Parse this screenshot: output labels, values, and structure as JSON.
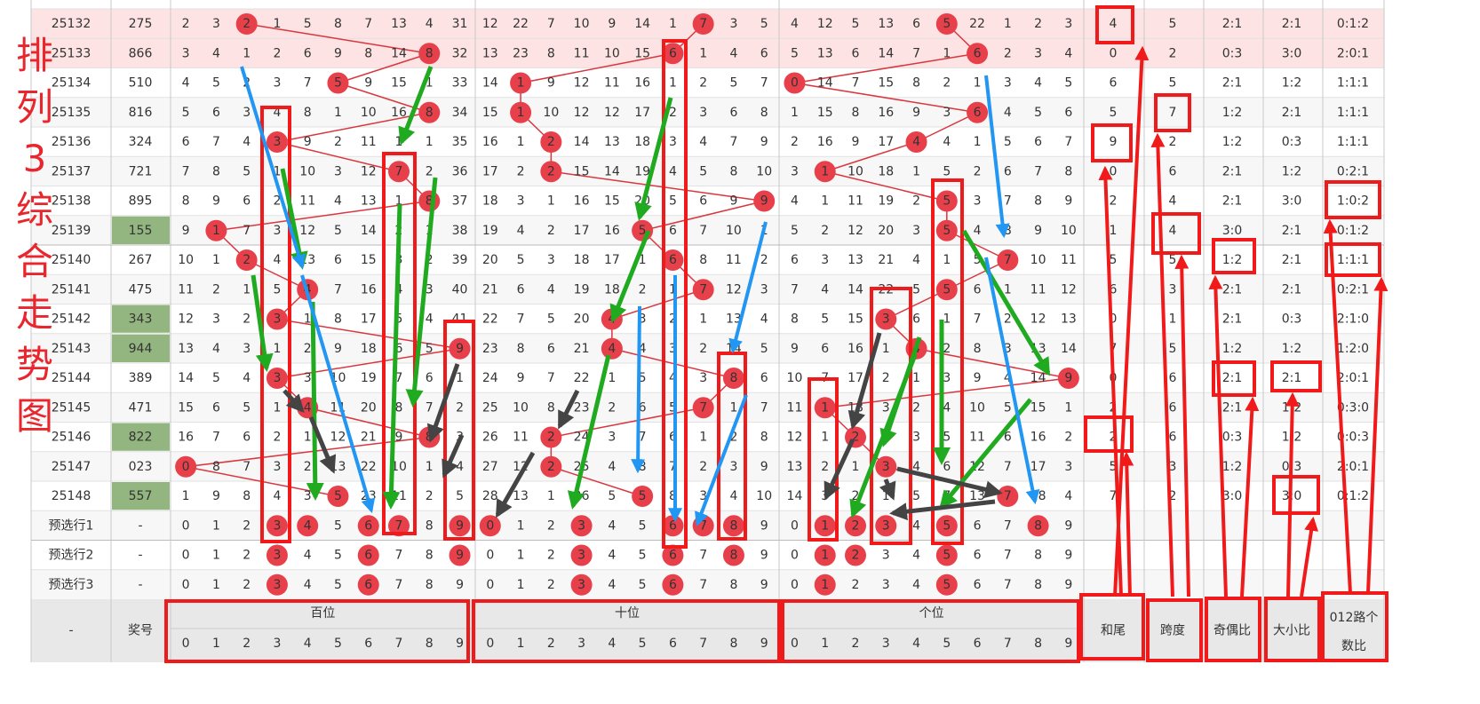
{
  "side_title": "排列3综合走势图",
  "header": {
    "issue": "-",
    "number": "奖号",
    "groups": [
      "百位",
      "十位",
      "个位"
    ],
    "digits": [
      [
        0,
        1,
        2,
        3,
        4,
        5,
        6,
        7,
        8,
        9
      ],
      [
        0,
        1,
        2,
        3,
        4,
        5,
        6,
        7,
        8,
        9
      ],
      [
        0,
        1,
        2,
        3,
        4,
        5,
        6,
        7,
        8,
        9
      ]
    ],
    "stats": [
      "和尾",
      "跨度",
      "奇偶比",
      "大小比",
      "012路个数比"
    ]
  },
  "rows": [
    {
      "issue": "25132",
      "number": "275",
      "hundreds": [
        2,
        3,
        2,
        1,
        5,
        8,
        7,
        13,
        4,
        31
      ],
      "tens": [
        12,
        22,
        7,
        10,
        9,
        14,
        1,
        7,
        3,
        5
      ],
      "ones": [
        4,
        12,
        5,
        13,
        6,
        5,
        22,
        1,
        2,
        3
      ],
      "sum_tail": 4,
      "span": 5,
      "odd_even": "2:1",
      "big_small": "2:1",
      "road012": "0:1:2"
    },
    {
      "issue": "25133",
      "number": "866",
      "hundreds": [
        3,
        4,
        1,
        2,
        6,
        9,
        8,
        14,
        8,
        32
      ],
      "tens": [
        13,
        23,
        8,
        11,
        10,
        15,
        6,
        1,
        4,
        6
      ],
      "ones": [
        5,
        13,
        6,
        14,
        7,
        1,
        6,
        2,
        3,
        4
      ],
      "sum_tail": 0,
      "span": 2,
      "odd_even": "0:3",
      "big_small": "3:0",
      "road012": "2:0:1"
    },
    {
      "issue": "25134",
      "number": "510",
      "hundreds": [
        4,
        5,
        2,
        3,
        7,
        5,
        9,
        15,
        1,
        33
      ],
      "tens": [
        14,
        1,
        9,
        12,
        11,
        16,
        1,
        2,
        5,
        7
      ],
      "ones": [
        0,
        14,
        7,
        15,
        8,
        2,
        1,
        3,
        4,
        5
      ],
      "sum_tail": 6,
      "span": 5,
      "odd_even": "2:1",
      "big_small": "1:2",
      "road012": "1:1:1"
    },
    {
      "issue": "25135",
      "number": "816",
      "hundreds": [
        5,
        6,
        3,
        4,
        8,
        1,
        10,
        16,
        8,
        34
      ],
      "tens": [
        15,
        1,
        10,
        12,
        12,
        17,
        2,
        3,
        6,
        8
      ],
      "ones": [
        1,
        15,
        8,
        16,
        9,
        3,
        6,
        4,
        5,
        6
      ],
      "sum_tail": 5,
      "span": 7,
      "odd_even": "1:2",
      "big_small": "2:1",
      "road012": "1:1:1"
    },
    {
      "issue": "25136",
      "number": "324",
      "hundreds": [
        6,
        7,
        4,
        3,
        9,
        2,
        11,
        1,
        1,
        35
      ],
      "tens": [
        16,
        1,
        2,
        14,
        13,
        18,
        3,
        4,
        7,
        9
      ],
      "ones": [
        2,
        16,
        9,
        17,
        4,
        4,
        1,
        5,
        6,
        7
      ],
      "sum_tail": 9,
      "span": 2,
      "odd_even": "1:2",
      "big_small": "0:3",
      "road012": "1:1:1"
    },
    {
      "issue": "25137",
      "number": "721",
      "hundreds": [
        7,
        8,
        5,
        1,
        10,
        3,
        12,
        7,
        2,
        36
      ],
      "tens": [
        17,
        2,
        2,
        15,
        14,
        19,
        4,
        5,
        8,
        10
      ],
      "ones": [
        3,
        1,
        10,
        18,
        1,
        5,
        2,
        6,
        7,
        8
      ],
      "sum_tail": 0,
      "span": 6,
      "odd_even": "2:1",
      "big_small": "1:2",
      "road012": "0:2:1"
    },
    {
      "issue": "25138",
      "number": "895",
      "hundreds": [
        8,
        9,
        6,
        2,
        11,
        4,
        13,
        1,
        8,
        37
      ],
      "tens": [
        18,
        3,
        1,
        16,
        15,
        20,
        5,
        6,
        9,
        9
      ],
      "ones": [
        4,
        1,
        11,
        19,
        2,
        5,
        3,
        7,
        8,
        9
      ],
      "sum_tail": 2,
      "span": 4,
      "odd_even": "2:1",
      "big_small": "3:0",
      "road012": "1:0:2"
    },
    {
      "issue": "25139",
      "number": "155",
      "hundreds": [
        9,
        1,
        7,
        3,
        12,
        5,
        14,
        2,
        1,
        38
      ],
      "tens": [
        19,
        4,
        2,
        17,
        16,
        5,
        6,
        7,
        10,
        1
      ],
      "ones": [
        5,
        2,
        12,
        20,
        3,
        5,
        4,
        8,
        9,
        10
      ],
      "sum_tail": 1,
      "span": 4,
      "odd_even": "3:0",
      "big_small": "2:1",
      "road012": "0:1:2"
    },
    {
      "issue": "25140",
      "number": "267",
      "hundreds": [
        10,
        1,
        2,
        4,
        13,
        6,
        15,
        3,
        2,
        39
      ],
      "tens": [
        20,
        5,
        3,
        18,
        17,
        1,
        6,
        8,
        11,
        2
      ],
      "ones": [
        6,
        3,
        13,
        21,
        4,
        1,
        5,
        7,
        10,
        11
      ],
      "sum_tail": 5,
      "span": 5,
      "odd_even": "1:2",
      "big_small": "2:1",
      "road012": "1:1:1"
    },
    {
      "issue": "25141",
      "number": "475",
      "hundreds": [
        11,
        2,
        1,
        5,
        4,
        7,
        16,
        4,
        3,
        40
      ],
      "tens": [
        21,
        6,
        4,
        19,
        18,
        2,
        1,
        7,
        12,
        3
      ],
      "ones": [
        7,
        4,
        14,
        22,
        5,
        5,
        6,
        1,
        11,
        12
      ],
      "sum_tail": 6,
      "span": 3,
      "odd_even": "2:1",
      "big_small": "2:1",
      "road012": "0:2:1"
    },
    {
      "issue": "25142",
      "number": "343",
      "hundreds": [
        12,
        3,
        2,
        3,
        1,
        8,
        17,
        5,
        4,
        41
      ],
      "tens": [
        22,
        7,
        5,
        20,
        4,
        3,
        2,
        1,
        13,
        4
      ],
      "ones": [
        8,
        5,
        15,
        3,
        6,
        1,
        7,
        2,
        12,
        13
      ],
      "sum_tail": 0,
      "span": 1,
      "odd_even": "2:1",
      "big_small": "0:3",
      "road012": "2:1:0"
    },
    {
      "issue": "25143",
      "number": "944",
      "hundreds": [
        13,
        4,
        3,
        1,
        2,
        9,
        18,
        6,
        5,
        9
      ],
      "tens": [
        23,
        8,
        6,
        21,
        4,
        4,
        3,
        2,
        14,
        5
      ],
      "ones": [
        9,
        6,
        16,
        1,
        4,
        2,
        8,
        3,
        13,
        14
      ],
      "sum_tail": 7,
      "span": 5,
      "odd_even": "1:2",
      "big_small": "1:2",
      "road012": "1:2:0"
    },
    {
      "issue": "25144",
      "number": "389",
      "hundreds": [
        14,
        5,
        4,
        3,
        3,
        10,
        19,
        7,
        6,
        1
      ],
      "tens": [
        24,
        9,
        7,
        22,
        1,
        5,
        4,
        3,
        8,
        6
      ],
      "ones": [
        10,
        7,
        17,
        2,
        1,
        3,
        9,
        4,
        14,
        9
      ],
      "sum_tail": 0,
      "span": 6,
      "odd_even": "2:1",
      "big_small": "2:1",
      "road012": "2:0:1"
    },
    {
      "issue": "25145",
      "number": "471",
      "hundreds": [
        15,
        6,
        5,
        1,
        4,
        11,
        20,
        8,
        7,
        2
      ],
      "tens": [
        25,
        10,
        8,
        23,
        2,
        6,
        5,
        7,
        1,
        7
      ],
      "ones": [
        11,
        1,
        18,
        3,
        2,
        4,
        10,
        5,
        15,
        1
      ],
      "sum_tail": 2,
      "span": 6,
      "odd_even": "2:1",
      "big_small": "1:2",
      "road012": "0:3:0"
    },
    {
      "issue": "25146",
      "number": "822",
      "hundreds": [
        16,
        7,
        6,
        2,
        1,
        12,
        21,
        9,
        8,
        3
      ],
      "tens": [
        26,
        11,
        2,
        24,
        3,
        7,
        6,
        1,
        2,
        8
      ],
      "ones": [
        12,
        1,
        2,
        4,
        3,
        5,
        11,
        6,
        16,
        2
      ],
      "sum_tail": 2,
      "span": 6,
      "odd_even": "0:3",
      "big_small": "1:2",
      "road012": "0:0:3"
    },
    {
      "issue": "25147",
      "number": "023",
      "hundreds": [
        0,
        8,
        7,
        3,
        2,
        13,
        22,
        10,
        1,
        4
      ],
      "tens": [
        27,
        12,
        2,
        25,
        4,
        8,
        7,
        2,
        3,
        9
      ],
      "ones": [
        13,
        2,
        1,
        3,
        4,
        6,
        12,
        7,
        17,
        3
      ],
      "sum_tail": 5,
      "span": 3,
      "odd_even": "1:2",
      "big_small": "0:3",
      "road012": "2:0:1"
    },
    {
      "issue": "25148",
      "number": "557",
      "hundreds": [
        1,
        9,
        8,
        4,
        3,
        5,
        23,
        11,
        2,
        5
      ],
      "tens": [
        28,
        13,
        1,
        26,
        5,
        5,
        8,
        3,
        4,
        10
      ],
      "ones": [
        14,
        3,
        2,
        1,
        5,
        7,
        13,
        7,
        18,
        4
      ],
      "sum_tail": 7,
      "span": 2,
      "odd_even": "3:0",
      "big_small": "3:0",
      "road012": "0:1:2"
    }
  ],
  "number_highlight": [
    7,
    10,
    11,
    14,
    16
  ],
  "preselect": [
    {
      "label": "预选行1",
      "number": "-",
      "hundreds": [
        0,
        1,
        2,
        3,
        4,
        5,
        6,
        7,
        8,
        9
      ],
      "tens": [
        0,
        1,
        2,
        3,
        4,
        5,
        6,
        7,
        8,
        9
      ],
      "ones": [
        0,
        1,
        2,
        3,
        4,
        5,
        6,
        7,
        8,
        9
      ],
      "circled": [
        [
          3,
          4,
          6,
          7,
          9
        ],
        [
          0,
          3,
          6,
          7,
          8
        ],
        [
          1,
          2,
          3,
          5,
          8
        ]
      ]
    },
    {
      "label": "预选行2",
      "number": "-",
      "hundreds": [
        0,
        1,
        2,
        3,
        4,
        5,
        6,
        7,
        8,
        9
      ],
      "tens": [
        0,
        1,
        2,
        3,
        4,
        5,
        6,
        7,
        8,
        9
      ],
      "ones": [
        0,
        1,
        2,
        3,
        4,
        5,
        6,
        7,
        8,
        9
      ],
      "circled": [
        [
          3,
          6,
          9
        ],
        [
          3,
          6,
          8
        ],
        [
          1,
          2,
          5
        ]
      ]
    },
    {
      "label": "预选行3",
      "number": "-",
      "hundreds": [
        0,
        1,
        2,
        3,
        4,
        5,
        6,
        7,
        8,
        9
      ],
      "tens": [
        0,
        1,
        2,
        3,
        4,
        5,
        6,
        7,
        8,
        9
      ],
      "ones": [
        0,
        1,
        2,
        3,
        4,
        5,
        6,
        7,
        8,
        9
      ],
      "circled": [
        [
          3,
          6
        ],
        [
          3,
          6
        ],
        [
          1,
          5
        ]
      ]
    }
  ]
}
